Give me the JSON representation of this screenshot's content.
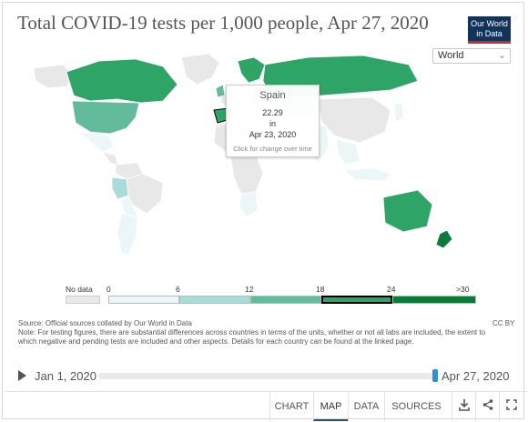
{
  "header": {
    "title": "Total COVID-19 tests per 1,000 people, Apr 27, 2020",
    "logo_line1": "Our World",
    "logo_line2": "in Data"
  },
  "region_select": {
    "value": "World"
  },
  "tooltip": {
    "country": "Spain",
    "value": "22.29",
    "in_label": "in",
    "date": "Apr 23, 2020",
    "hint": "Click for change over time"
  },
  "legend": {
    "no_data_label": "No data",
    "ticks": [
      "0",
      "6",
      "12",
      "18",
      "24",
      ">30"
    ],
    "colors": {
      "no_data": "#e8e8e8",
      "b0": "#eaf6f8",
      "b1": "#a9dcd6",
      "b2": "#62bc9b",
      "b3": "#2ea466",
      "b4": "#0c7a39"
    }
  },
  "notes": {
    "source": "Source: Official sources collated by Our World in Data",
    "note": "Note: For testing figures, there are substantial differences across countries in terms of the units, whether or not all labs are included, the extent to which negative and pending tests are included and other aspects. Details for each country can be found at the linked page.",
    "license": "CC BY"
  },
  "timeline": {
    "start": "Jan 1, 2020",
    "end": "Apr 27, 2020",
    "progress": 1.0
  },
  "footer": {
    "tabs": [
      "CHART",
      "MAP",
      "DATA",
      "SOURCES"
    ],
    "active_tab": "MAP",
    "icons": [
      "download-icon",
      "share-icon",
      "fullscreen-icon"
    ]
  }
}
